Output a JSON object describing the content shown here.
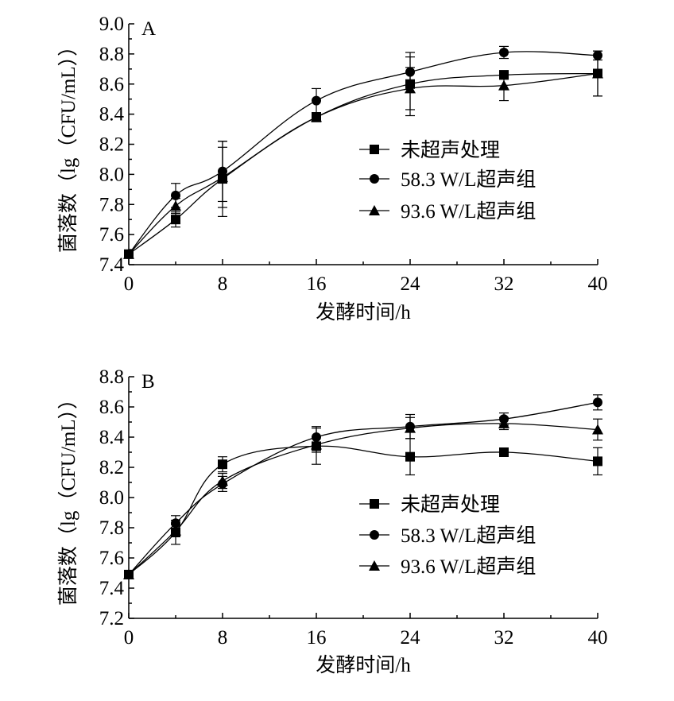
{
  "chart_data": [
    {
      "type": "line",
      "panel_label": "A",
      "xlabel": "发酵时间/h",
      "ylabel": "菌落数（lg（CFU/mL））",
      "x_ticks": [
        0,
        8,
        16,
        24,
        32,
        40
      ],
      "y_ticks": [
        "7.4",
        "7.6",
        "7.8",
        "8.0",
        "8.2",
        "8.4",
        "8.6",
        "8.8",
        "9.0"
      ],
      "xlim": [
        0,
        40
      ],
      "ylim": [
        7.4,
        9.0
      ],
      "legend_position": "center-right",
      "x": [
        0,
        4,
        8,
        16,
        24,
        32,
        40
      ],
      "series": [
        {
          "name": "未超声处理",
          "marker": "square",
          "values": [
            7.47,
            7.7,
            7.97,
            8.38,
            8.6,
            8.66,
            8.67
          ],
          "errors": [
            0.01,
            0.05,
            0.25,
            0.03,
            0.21,
            0.02,
            0.15
          ]
        },
        {
          "name": "58.3 W/L超声组",
          "marker": "circle",
          "values": [
            7.47,
            7.86,
            8.02,
            8.49,
            8.68,
            8.81,
            8.79
          ],
          "errors": [
            0.01,
            0.08,
            0.2,
            0.08,
            0.1,
            0.04,
            0.03
          ]
        },
        {
          "name": "93.6 W/L超声组",
          "marker": "triangle",
          "values": [
            7.47,
            7.79,
            7.98,
            8.38,
            8.57,
            8.59,
            8.67
          ],
          "errors": [
            0.01,
            0.05,
            0.2,
            0.03,
            0.14,
            0.1,
            0.15
          ]
        }
      ]
    },
    {
      "type": "line",
      "panel_label": "B",
      "xlabel": "发酵时间/h",
      "ylabel": "菌落数（lg（CFU/mL））",
      "x_ticks": [
        0,
        8,
        16,
        24,
        32,
        40
      ],
      "y_ticks": [
        "7.2",
        "7.4",
        "7.6",
        "7.8",
        "8.0",
        "8.2",
        "8.4",
        "8.6",
        "8.8"
      ],
      "xlim": [
        0,
        40
      ],
      "ylim": [
        7.2,
        8.8
      ],
      "legend_position": "center-right",
      "x": [
        0,
        4,
        8,
        16,
        24,
        32,
        40
      ],
      "series": [
        {
          "name": "未超声处理",
          "marker": "square",
          "values": [
            7.49,
            7.77,
            8.22,
            8.34,
            8.27,
            8.3,
            8.24
          ],
          "errors": [
            0.02,
            0.08,
            0.05,
            0.12,
            0.12,
            0.02,
            0.09
          ]
        },
        {
          "name": "58.3 W/L超声组",
          "marker": "circle",
          "values": [
            7.49,
            7.83,
            8.09,
            8.4,
            8.47,
            8.52,
            8.63
          ],
          "errors": [
            0.02,
            0.05,
            0.05,
            0.07,
            0.08,
            0.04,
            0.05
          ]
        },
        {
          "name": "93.6 W/L超声组",
          "marker": "triangle",
          "values": [
            7.49,
            7.78,
            8.11,
            8.35,
            8.46,
            8.49,
            8.45
          ],
          "errors": [
            0.02,
            0.04,
            0.05,
            0.05,
            0.07,
            0.04,
            0.07
          ]
        }
      ]
    }
  ]
}
